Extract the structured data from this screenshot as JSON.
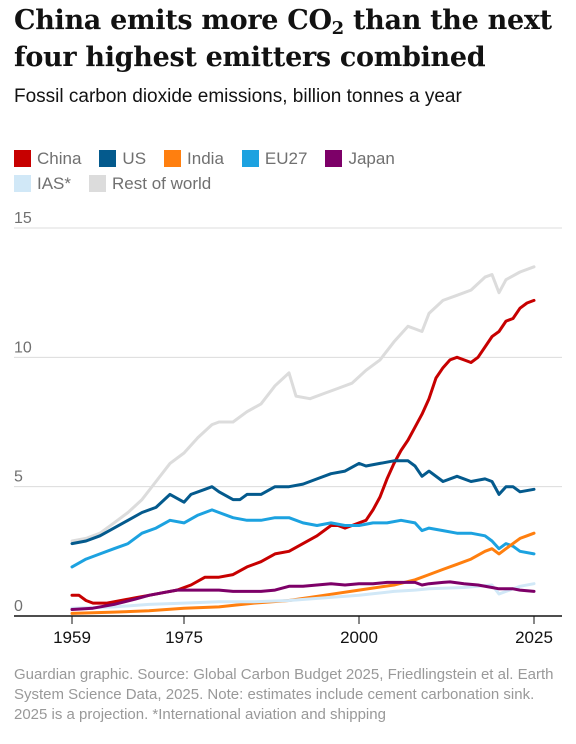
{
  "title": {
    "before": "China emits more CO",
    "sub": "2",
    "after": " than the next four highest emitters combined"
  },
  "subtitle": "Fossil carbon dioxide emissions, billion tonnes a year",
  "footer": "Guardian graphic. Source: Global Carbon Budget 2025, Friedlingstein et al. Earth System Science Data, 2025. Note: estimates include cement carbonation sink. 2025 is a projection. *International aviation and shipping",
  "chart_data": {
    "type": "line",
    "xlim": [
      1959,
      2025
    ],
    "ylim": [
      0,
      15
    ],
    "x_ticks": [
      1959,
      1975,
      2000,
      2025
    ],
    "y_ticks": [
      0,
      5,
      10,
      15
    ],
    "grid": "horizontal",
    "legend_placement": "top",
    "series": [
      {
        "name": "Rest of world",
        "color": "#dcdcdc",
        "points": [
          [
            1959,
            2.9
          ],
          [
            1961,
            3.0
          ],
          [
            1963,
            3.2
          ],
          [
            1965,
            3.6
          ],
          [
            1967,
            4.0
          ],
          [
            1969,
            4.5
          ],
          [
            1971,
            5.2
          ],
          [
            1973,
            5.9
          ],
          [
            1975,
            6.3
          ],
          [
            1977,
            6.9
          ],
          [
            1979,
            7.4
          ],
          [
            1980,
            7.5
          ],
          [
            1982,
            7.5
          ],
          [
            1984,
            7.9
          ],
          [
            1986,
            8.2
          ],
          [
            1988,
            8.9
          ],
          [
            1990,
            9.4
          ],
          [
            1991,
            8.5
          ],
          [
            1993,
            8.4
          ],
          [
            1995,
            8.6
          ],
          [
            1997,
            8.8
          ],
          [
            1999,
            9.0
          ],
          [
            2001,
            9.5
          ],
          [
            2003,
            9.9
          ],
          [
            2005,
            10.6
          ],
          [
            2007,
            11.2
          ],
          [
            2008,
            11.1
          ],
          [
            2009,
            11.0
          ],
          [
            2010,
            11.7
          ],
          [
            2012,
            12.2
          ],
          [
            2014,
            12.4
          ],
          [
            2016,
            12.6
          ],
          [
            2018,
            13.1
          ],
          [
            2019,
            13.2
          ],
          [
            2020,
            12.5
          ],
          [
            2021,
            13.0
          ],
          [
            2023,
            13.3
          ],
          [
            2025,
            13.5
          ]
        ]
      },
      {
        "name": "China",
        "color": "#c70000",
        "points": [
          [
            1959,
            0.8
          ],
          [
            1960,
            0.8
          ],
          [
            1961,
            0.6
          ],
          [
            1962,
            0.5
          ],
          [
            1964,
            0.5
          ],
          [
            1966,
            0.6
          ],
          [
            1968,
            0.7
          ],
          [
            1970,
            0.8
          ],
          [
            1972,
            0.9
          ],
          [
            1974,
            1.0
          ],
          [
            1976,
            1.2
          ],
          [
            1978,
            1.5
          ],
          [
            1980,
            1.5
          ],
          [
            1982,
            1.6
          ],
          [
            1984,
            1.9
          ],
          [
            1986,
            2.1
          ],
          [
            1988,
            2.4
          ],
          [
            1990,
            2.5
          ],
          [
            1992,
            2.8
          ],
          [
            1994,
            3.1
          ],
          [
            1996,
            3.5
          ],
          [
            1997,
            3.5
          ],
          [
            1998,
            3.4
          ],
          [
            1999,
            3.5
          ],
          [
            2000,
            3.6
          ],
          [
            2001,
            3.7
          ],
          [
            2002,
            4.1
          ],
          [
            2003,
            4.6
          ],
          [
            2004,
            5.3
          ],
          [
            2005,
            5.9
          ],
          [
            2006,
            6.4
          ],
          [
            2007,
            6.8
          ],
          [
            2008,
            7.3
          ],
          [
            2009,
            7.8
          ],
          [
            2010,
            8.4
          ],
          [
            2011,
            9.2
          ],
          [
            2012,
            9.6
          ],
          [
            2013,
            9.9
          ],
          [
            2014,
            10.0
          ],
          [
            2015,
            9.9
          ],
          [
            2016,
            9.8
          ],
          [
            2017,
            10.0
          ],
          [
            2018,
            10.4
          ],
          [
            2019,
            10.8
          ],
          [
            2020,
            11.0
          ],
          [
            2021,
            11.4
          ],
          [
            2022,
            11.5
          ],
          [
            2023,
            11.9
          ],
          [
            2024,
            12.1
          ],
          [
            2025,
            12.2
          ]
        ]
      },
      {
        "name": "US",
        "color": "#045a8d",
        "points": [
          [
            1959,
            2.8
          ],
          [
            1961,
            2.9
          ],
          [
            1963,
            3.1
          ],
          [
            1965,
            3.4
          ],
          [
            1967,
            3.7
          ],
          [
            1969,
            4.0
          ],
          [
            1971,
            4.2
          ],
          [
            1973,
            4.7
          ],
          [
            1975,
            4.4
          ],
          [
            1976,
            4.7
          ],
          [
            1978,
            4.9
          ],
          [
            1979,
            5.0
          ],
          [
            1980,
            4.8
          ],
          [
            1982,
            4.5
          ],
          [
            1983,
            4.5
          ],
          [
            1984,
            4.7
          ],
          [
            1986,
            4.7
          ],
          [
            1988,
            5.0
          ],
          [
            1990,
            5.0
          ],
          [
            1992,
            5.1
          ],
          [
            1994,
            5.3
          ],
          [
            1996,
            5.5
          ],
          [
            1998,
            5.6
          ],
          [
            2000,
            5.9
          ],
          [
            2001,
            5.8
          ],
          [
            2003,
            5.9
          ],
          [
            2005,
            6.0
          ],
          [
            2007,
            6.0
          ],
          [
            2008,
            5.8
          ],
          [
            2009,
            5.4
          ],
          [
            2010,
            5.6
          ],
          [
            2012,
            5.2
          ],
          [
            2014,
            5.4
          ],
          [
            2016,
            5.2
          ],
          [
            2018,
            5.3
          ],
          [
            2019,
            5.2
          ],
          [
            2020,
            4.7
          ],
          [
            2021,
            5.0
          ],
          [
            2022,
            5.0
          ],
          [
            2023,
            4.8
          ],
          [
            2025,
            4.9
          ]
        ]
      },
      {
        "name": "EU27",
        "color": "#1ca2e0",
        "points": [
          [
            1959,
            1.9
          ],
          [
            1961,
            2.2
          ],
          [
            1963,
            2.4
          ],
          [
            1965,
            2.6
          ],
          [
            1967,
            2.8
          ],
          [
            1969,
            3.2
          ],
          [
            1971,
            3.4
          ],
          [
            1973,
            3.7
          ],
          [
            1975,
            3.6
          ],
          [
            1977,
            3.9
          ],
          [
            1979,
            4.1
          ],
          [
            1980,
            4.0
          ],
          [
            1982,
            3.8
          ],
          [
            1984,
            3.7
          ],
          [
            1986,
            3.7
          ],
          [
            1988,
            3.8
          ],
          [
            1990,
            3.8
          ],
          [
            1992,
            3.6
          ],
          [
            1994,
            3.5
          ],
          [
            1996,
            3.6
          ],
          [
            1998,
            3.5
          ],
          [
            2000,
            3.5
          ],
          [
            2002,
            3.6
          ],
          [
            2004,
            3.6
          ],
          [
            2006,
            3.7
          ],
          [
            2008,
            3.6
          ],
          [
            2009,
            3.3
          ],
          [
            2010,
            3.4
          ],
          [
            2012,
            3.3
          ],
          [
            2014,
            3.2
          ],
          [
            2016,
            3.2
          ],
          [
            2018,
            3.1
          ],
          [
            2019,
            2.9
          ],
          [
            2020,
            2.6
          ],
          [
            2021,
            2.8
          ],
          [
            2022,
            2.7
          ],
          [
            2023,
            2.5
          ],
          [
            2025,
            2.4
          ]
        ]
      },
      {
        "name": "India",
        "color": "#ff7f0f",
        "points": [
          [
            1959,
            0.1
          ],
          [
            1965,
            0.15
          ],
          [
            1970,
            0.2
          ],
          [
            1975,
            0.3
          ],
          [
            1980,
            0.35
          ],
          [
            1985,
            0.5
          ],
          [
            1990,
            0.6
          ],
          [
            1995,
            0.8
          ],
          [
            2000,
            1.0
          ],
          [
            2005,
            1.2
          ],
          [
            2008,
            1.4
          ],
          [
            2010,
            1.6
          ],
          [
            2012,
            1.8
          ],
          [
            2014,
            2.0
          ],
          [
            2016,
            2.2
          ],
          [
            2018,
            2.5
          ],
          [
            2019,
            2.6
          ],
          [
            2020,
            2.4
          ],
          [
            2021,
            2.6
          ],
          [
            2022,
            2.8
          ],
          [
            2023,
            3.0
          ],
          [
            2024,
            3.1
          ],
          [
            2025,
            3.2
          ]
        ]
      },
      {
        "name": "IAS*",
        "color": "#d1e8f7",
        "points": [
          [
            1959,
            0.3
          ],
          [
            1965,
            0.35
          ],
          [
            1970,
            0.45
          ],
          [
            1975,
            0.5
          ],
          [
            1980,
            0.55
          ],
          [
            1985,
            0.55
          ],
          [
            1990,
            0.6
          ],
          [
            1995,
            0.7
          ],
          [
            2000,
            0.8
          ],
          [
            2005,
            0.95
          ],
          [
            2008,
            1.0
          ],
          [
            2010,
            1.05
          ],
          [
            2015,
            1.1
          ],
          [
            2019,
            1.2
          ],
          [
            2020,
            0.85
          ],
          [
            2021,
            0.95
          ],
          [
            2023,
            1.15
          ],
          [
            2025,
            1.25
          ]
        ]
      },
      {
        "name": "Japan",
        "color": "#7d0068",
        "points": [
          [
            1959,
            0.25
          ],
          [
            1962,
            0.3
          ],
          [
            1965,
            0.45
          ],
          [
            1968,
            0.65
          ],
          [
            1970,
            0.8
          ],
          [
            1972,
            0.9
          ],
          [
            1974,
            1.0
          ],
          [
            1976,
            1.0
          ],
          [
            1978,
            1.0
          ],
          [
            1980,
            1.0
          ],
          [
            1982,
            0.95
          ],
          [
            1984,
            0.95
          ],
          [
            1986,
            0.95
          ],
          [
            1988,
            1.0
          ],
          [
            1990,
            1.15
          ],
          [
            1992,
            1.15
          ],
          [
            1994,
            1.2
          ],
          [
            1996,
            1.25
          ],
          [
            1998,
            1.2
          ],
          [
            2000,
            1.25
          ],
          [
            2002,
            1.25
          ],
          [
            2004,
            1.3
          ],
          [
            2006,
            1.3
          ],
          [
            2008,
            1.3
          ],
          [
            2009,
            1.2
          ],
          [
            2010,
            1.25
          ],
          [
            2012,
            1.3
          ],
          [
            2013,
            1.32
          ],
          [
            2015,
            1.25
          ],
          [
            2017,
            1.2
          ],
          [
            2019,
            1.1
          ],
          [
            2020,
            1.05
          ],
          [
            2022,
            1.05
          ],
          [
            2023,
            1.0
          ],
          [
            2025,
            0.95
          ]
        ]
      }
    ]
  },
  "legend": {
    "row1": [
      {
        "label": "China",
        "color": "#c70000"
      },
      {
        "label": "US",
        "color": "#045a8d"
      },
      {
        "label": "India",
        "color": "#ff7f0f"
      },
      {
        "label": "EU27",
        "color": "#1ca2e0"
      },
      {
        "label": "Japan",
        "color": "#7d0068"
      }
    ],
    "row2": [
      {
        "label": "IAS*",
        "color": "#d1e8f7"
      },
      {
        "label": "Rest of world",
        "color": "#dcdcdc"
      }
    ]
  }
}
